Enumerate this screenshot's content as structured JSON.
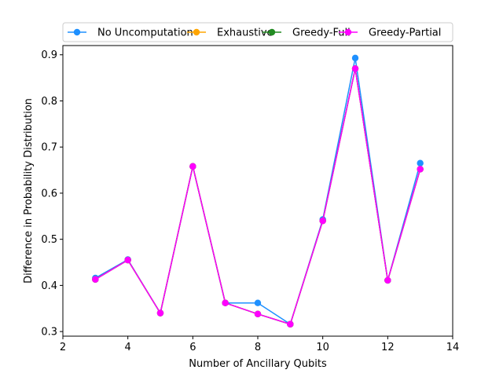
{
  "chart_data": {
    "type": "line",
    "title": "",
    "xlabel": "Number of Ancillary Qubits",
    "ylabel": "Difference in Probability Distribution",
    "xlim": [
      2,
      14
    ],
    "ylim": [
      0.29,
      0.92
    ],
    "xticks": [
      2,
      4,
      6,
      8,
      10,
      12,
      14
    ],
    "yticks": [
      0.3,
      0.4,
      0.5,
      0.6,
      0.7,
      0.8,
      0.9
    ],
    "grid": false,
    "legend_position": "top",
    "x": [
      3,
      4,
      5,
      6,
      7,
      8,
      9,
      10,
      11,
      12,
      13
    ],
    "series": [
      {
        "name": "No Uncomputation",
        "color": "#1e90ff",
        "values": [
          0.416,
          0.456,
          0.34,
          0.658,
          0.362,
          0.362,
          0.316,
          0.543,
          0.893,
          0.411,
          0.665
        ]
      },
      {
        "name": "Exhaustive",
        "color": "#ffa500",
        "values": [
          0.413,
          0.455,
          0.34,
          0.658,
          0.362,
          0.338,
          0.316,
          0.54,
          0.87,
          0.411,
          0.652
        ]
      },
      {
        "name": "Greedy-Full",
        "color": "#228b22",
        "values": [
          0.413,
          0.455,
          0.34,
          0.658,
          0.362,
          0.338,
          0.316,
          0.54,
          0.87,
          0.411,
          0.652
        ]
      },
      {
        "name": "Greedy-Partial",
        "color": "#ff00ff",
        "values": [
          0.413,
          0.455,
          0.34,
          0.658,
          0.362,
          0.338,
          0.316,
          0.54,
          0.87,
          0.411,
          0.652
        ]
      }
    ]
  }
}
